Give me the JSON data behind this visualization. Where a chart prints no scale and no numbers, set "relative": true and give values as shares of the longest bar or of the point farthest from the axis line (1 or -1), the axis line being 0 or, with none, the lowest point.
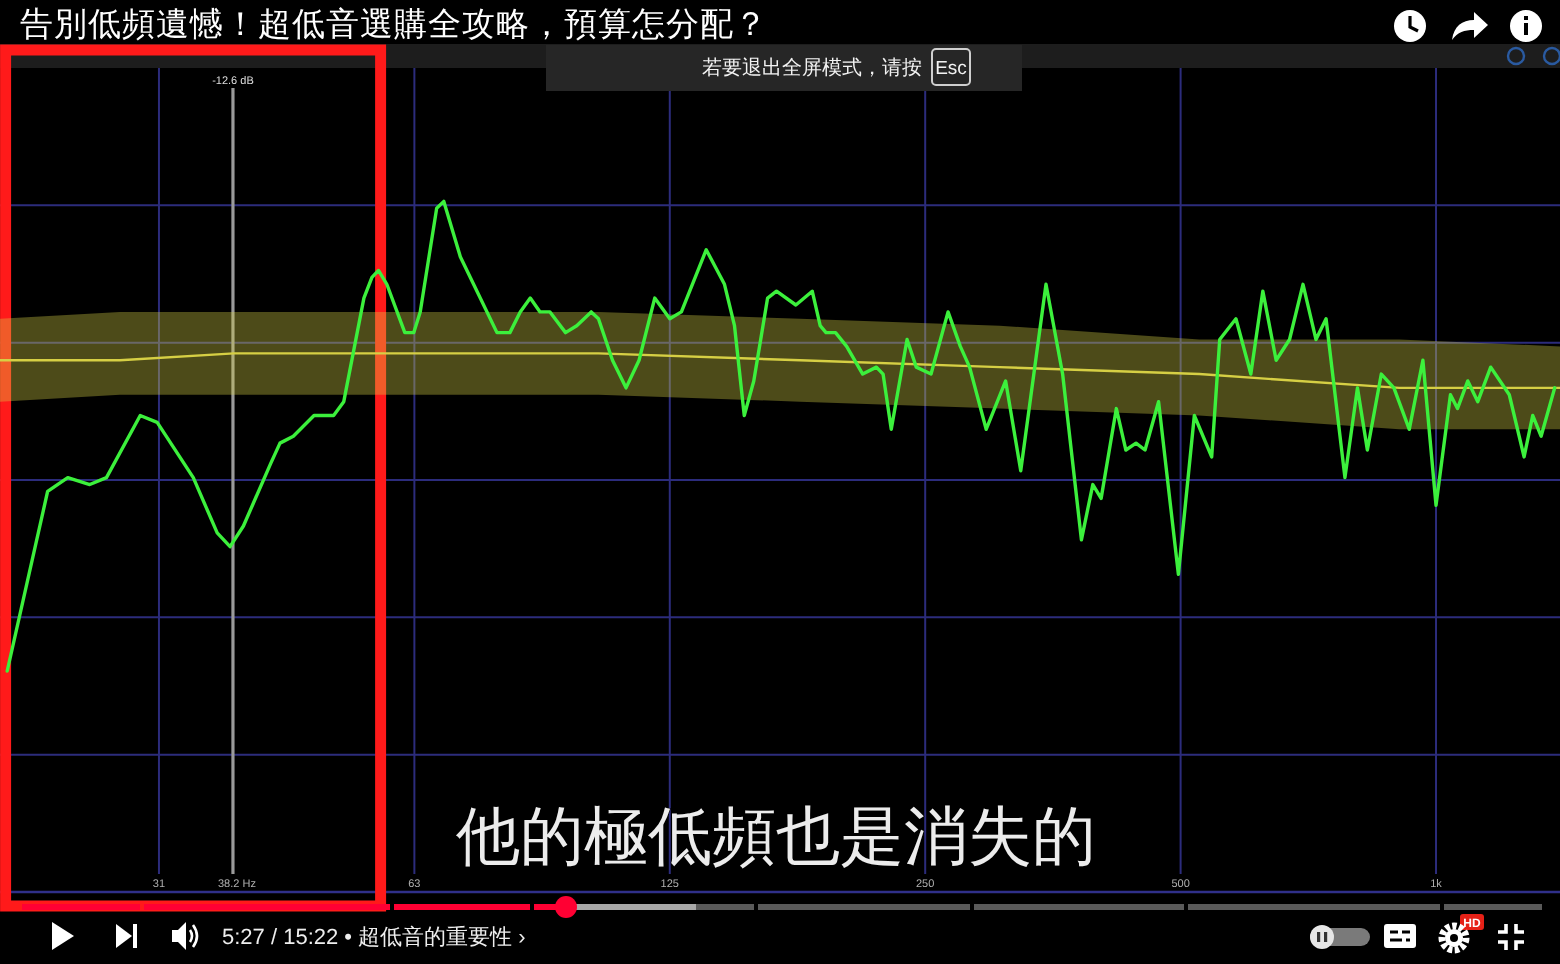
{
  "chart_data": {
    "type": "line",
    "title": "告別低頻遺憾！超低音選購全攻略，預算怎分配？",
    "relative": true,
    "log": "x",
    "grid": true,
    "xlim": [
      20.3,
      1400
    ],
    "xticks": [
      {
        "value": 31.25,
        "label": "31"
      },
      {
        "value": 62.5,
        "label": "63"
      },
      125,
      250,
      500,
      {
        "value": 1000,
        "label": "1k"
      }
    ],
    "series": [
      {
        "color": "#3cf03c",
        "x": [
          20.7,
          23.1,
          24.4,
          25.9,
          27.1,
          29.7,
          31.1,
          34.3,
          36.6,
          37.9,
          39.3,
          42.3,
          43.4,
          45.0,
          47.6,
          48.9,
          50.2,
          51.6,
          54.5,
          55.7,
          56.7,
          58.0,
          60.9,
          62.4,
          63.5,
          66.4,
          67.7,
          70.8,
          73.4,
          78.2,
          81.0,
          83.3,
          85.6,
          87.9,
          90.3,
          94.2,
          97.1,
          101,
          103,
          107,
          111,
          115,
          120,
          125,
          129,
          138,
          145,
          149,
          153,
          157,
          163,
          167,
          176,
          184,
          188,
          191,
          196,
          202,
          211,
          219,
          223,
          228,
          238,
          244,
          254,
          266,
          275,
          282,
          295,
          311,
          324,
          347,
          363,
          382,
          394,
          403,
          420,
          431,
          443,
          454,
          471,
          497,
          519,
          544,
          556,
          581,
          605,
          625,
          648,
          672,
          697,
          722,
          742,
          781,
          808,
          830,
          862,
          892,
          930,
          965,
          1000,
          1040,
          1060,
          1090,
          1120,
          1160,
          1220,
          1270,
          1300,
          1330,
          1380
        ],
        "values": [
          0.32,
          0.58,
          0.6,
          0.59,
          0.6,
          0.69,
          0.68,
          0.6,
          0.52,
          0.5,
          0.53,
          0.62,
          0.65,
          0.66,
          0.69,
          0.69,
          0.69,
          0.71,
          0.86,
          0.89,
          0.9,
          0.88,
          0.81,
          0.81,
          0.84,
          0.99,
          1,
          0.92,
          0.88,
          0.81,
          0.81,
          0.84,
          0.86,
          0.84,
          0.84,
          0.81,
          0.82,
          0.84,
          0.83,
          0.77,
          0.73,
          0.77,
          0.86,
          0.83,
          0.84,
          0.93,
          0.88,
          0.82,
          0.69,
          0.74,
          0.86,
          0.87,
          0.85,
          0.87,
          0.82,
          0.81,
          0.81,
          0.79,
          0.75,
          0.76,
          0.75,
          0.67,
          0.8,
          0.76,
          0.75,
          0.84,
          0.79,
          0.76,
          0.67,
          0.74,
          0.61,
          0.88,
          0.75,
          0.51,
          0.59,
          0.57,
          0.7,
          0.64,
          0.65,
          0.64,
          0.71,
          0.46,
          0.69,
          0.63,
          0.8,
          0.83,
          0.75,
          0.87,
          0.77,
          0.8,
          0.88,
          0.8,
          0.83,
          0.6,
          0.73,
          0.64,
          0.75,
          0.73,
          0.67,
          0.77,
          0.56,
          0.72,
          0.7,
          0.74,
          0.71,
          0.76,
          0.72,
          0.63,
          0.69,
          0.66,
          0.73
        ]
      },
      {
        "color": "#d6cf44",
        "x": [
          20.3,
          28.1,
          38.3,
          60.1,
          103,
          178,
          306,
          526,
          905,
          1400
        ],
        "values": [
          0.77,
          0.77,
          0.78,
          0.78,
          0.78,
          0.77,
          0.76,
          0.75,
          0.73,
          0.73
        ],
        "upper": [
          0.83,
          0.84,
          0.84,
          0.84,
          0.84,
          0.83,
          0.82,
          0.8,
          0.8,
          0.79
        ],
        "lower": [
          0.71,
          0.72,
          0.72,
          0.72,
          0.72,
          0.71,
          0.7,
          0.69,
          0.67,
          0.67
        ]
      }
    ],
    "ref_lines": [
      {
        "axis": "x",
        "value": 38.2,
        "label": "38.2 Hz",
        "color": "#9a9a9a"
      }
    ],
    "annotations": [
      {
        "text": "-12.6 dB",
        "x": 38.2
      },
      "他的極低頻也是消失的",
      "若要退出全屏模式，请按",
      "Esc",
      "5:27 / 15:22 • 超低音的重要性 ›",
      "HD"
    ]
  }
}
